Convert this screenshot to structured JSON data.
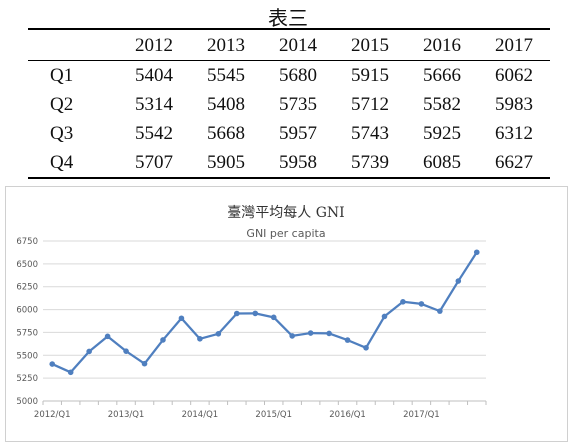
{
  "table": {
    "title": "表三",
    "columns": [
      "2012",
      "2013",
      "2014",
      "2015",
      "2016",
      "2017"
    ],
    "rows": [
      {
        "label": "Q1",
        "values": [
          "5404",
          "5545",
          "5680",
          "5915",
          "5666",
          "6062"
        ]
      },
      {
        "label": "Q2",
        "values": [
          "5314",
          "5408",
          "5735",
          "5712",
          "5582",
          "5983"
        ]
      },
      {
        "label": "Q3",
        "values": [
          "5542",
          "5668",
          "5957",
          "5743",
          "5925",
          "6312"
        ]
      },
      {
        "label": "Q4",
        "values": [
          "5707",
          "5905",
          "5958",
          "5739",
          "6085",
          "6627"
        ]
      }
    ]
  },
  "chart_data": {
    "type": "line",
    "title": "臺灣平均每人 GNI",
    "subtitle": "GNI per capita",
    "xlabel": "",
    "ylabel": "",
    "ylim": [
      5000,
      6750
    ],
    "yticks": [
      5000,
      5250,
      5500,
      5750,
      6000,
      6250,
      6500,
      6750
    ],
    "x": [
      "2012/Q1",
      "2012/Q2",
      "2012/Q3",
      "2012/Q4",
      "2013/Q1",
      "2013/Q2",
      "2013/Q3",
      "2013/Q4",
      "2014/Q1",
      "2014/Q2",
      "2014/Q3",
      "2014/Q4",
      "2015/Q1",
      "2015/Q2",
      "2015/Q3",
      "2015/Q4",
      "2016/Q1",
      "2016/Q2",
      "2016/Q3",
      "2016/Q4",
      "2017/Q1",
      "2017/Q2",
      "2017/Q3",
      "2017/Q4"
    ],
    "xtick_labels": [
      "2012/Q1",
      "2013/Q1",
      "2014/Q1",
      "2015/Q1",
      "2016/Q1",
      "2017/Q1"
    ],
    "series": [
      {
        "values": [
          5404,
          5314,
          5542,
          5707,
          5545,
          5408,
          5668,
          5905,
          5680,
          5735,
          5957,
          5958,
          5915,
          5712,
          5743,
          5739,
          5666,
          5582,
          5925,
          6085,
          6062,
          5983,
          6312,
          6627
        ]
      }
    ],
    "grid": true,
    "legend": false,
    "colors": {
      "line": "#4f7fbf",
      "grid": "#d9d9d9",
      "axis": "#bfbfbf",
      "text": "#595959"
    }
  }
}
